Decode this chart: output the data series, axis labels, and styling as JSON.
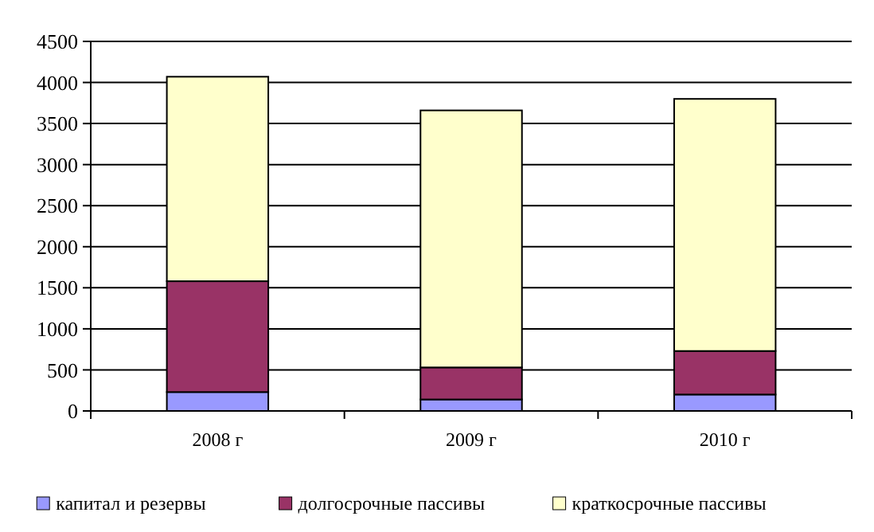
{
  "chart_data": {
    "type": "bar",
    "stacked": true,
    "categories": [
      "2008 г",
      "2009 г",
      "2010 г"
    ],
    "series": [
      {
        "name": "капитал и резервы",
        "color": "#9999ff",
        "values": [
          230,
          140,
          200
        ]
      },
      {
        "name": "долгосрочные пассивы",
        "color": "#993366",
        "values": [
          1350,
          390,
          530
        ]
      },
      {
        "name": "краткосрочные пассивы",
        "color": "#ffffcc",
        "values": [
          2490,
          3130,
          3070
        ]
      }
    ],
    "ylim": [
      0,
      4500
    ],
    "yticks": [
      0,
      500,
      1000,
      1500,
      2000,
      2500,
      3000,
      3500,
      4000,
      4500
    ],
    "grid": "y",
    "legend": "bottom"
  }
}
